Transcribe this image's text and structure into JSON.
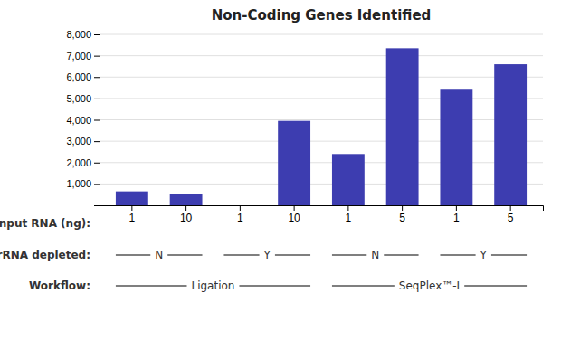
{
  "chart_data": {
    "type": "bar",
    "title": "Non-Coding Genes Identified",
    "xlabel": "Input RNA (ng):",
    "categories": [
      "1",
      "10",
      "1",
      "10",
      "1",
      "5",
      "1",
      "5"
    ],
    "values": [
      650,
      550,
      0,
      3950,
      2400,
      7350,
      5450,
      6600
    ],
    "color": "#3D3DB0",
    "ylim": [
      0,
      8000
    ],
    "yticks": [
      {
        "value": 1000,
        "label": "1,000"
      },
      {
        "value": 2000,
        "label": "2,000"
      },
      {
        "value": 3000,
        "label": "3,000"
      },
      {
        "value": 4000,
        "label": "4,000"
      },
      {
        "value": 5000,
        "label": "5,000"
      },
      {
        "value": 6000,
        "label": "6,000"
      },
      {
        "value": 7000,
        "label": "7,000"
      },
      {
        "value": 8000,
        "label": "8,000"
      }
    ],
    "grid": true,
    "annotations": [
      {
        "text": "rRNA depleted:",
        "groups": [
          {
            "label": "N",
            "bars": [
              0,
              1
            ]
          },
          {
            "label": "Y",
            "bars": [
              2,
              3
            ]
          },
          {
            "label": "N",
            "bars": [
              4,
              5
            ]
          },
          {
            "label": "Y",
            "bars": [
              6,
              7
            ]
          }
        ]
      },
      {
        "text": "Workflow:",
        "groups": [
          {
            "label": "Ligation",
            "bars": [
              0,
              3
            ]
          },
          {
            "label": "SeqPlex™-I",
            "bars": [
              4,
              7
            ]
          }
        ]
      }
    ]
  }
}
